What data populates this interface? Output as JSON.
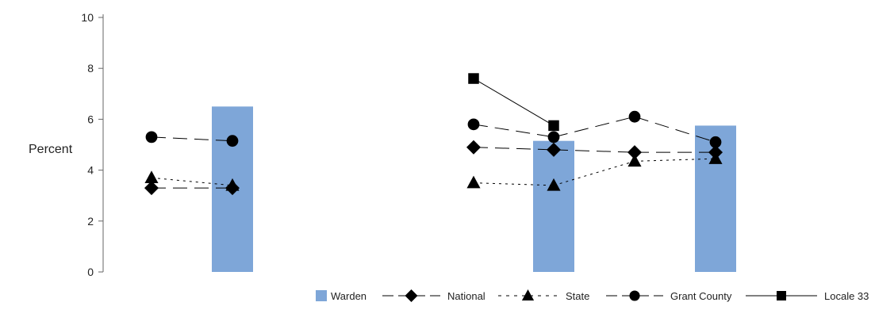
{
  "chart_data": {
    "type": "bar",
    "title": "",
    "xlabel": "",
    "ylabel": "Percent",
    "ylim": [
      0,
      10
    ],
    "yticks": [
      0,
      2,
      4,
      6,
      8,
      10
    ],
    "grid": false,
    "legend_position": "bottom-right",
    "categories": [
      "",
      "",
      "",
      "",
      ""
    ],
    "bar_color": "#7ea6d8",
    "bar_series": {
      "name": "Warden",
      "values": [
        6.5,
        null,
        null,
        5.15,
        5.75
      ]
    },
    "line_series": [
      {
        "name": "National",
        "marker": "diamond",
        "dash": "long-dash",
        "values": [
          3.3,
          3.3,
          4.9,
          4.8,
          4.7,
          4.7
        ]
      },
      {
        "name": "State",
        "marker": "triangle",
        "dash": "dotted",
        "values": [
          3.7,
          3.4,
          3.5,
          3.4,
          4.35,
          4.45
        ]
      },
      {
        "name": "Grant County",
        "marker": "circle",
        "dash": "long-dash",
        "values": [
          5.3,
          5.15,
          5.8,
          5.3,
          6.1,
          5.1
        ]
      },
      {
        "name": "Locale 33",
        "marker": "square",
        "dash": "solid",
        "values": [
          null,
          null,
          7.6,
          5.75,
          null,
          null
        ]
      }
    ],
    "legend": [
      "Warden",
      "National",
      "State",
      "Grant County",
      "Locale 33"
    ]
  }
}
